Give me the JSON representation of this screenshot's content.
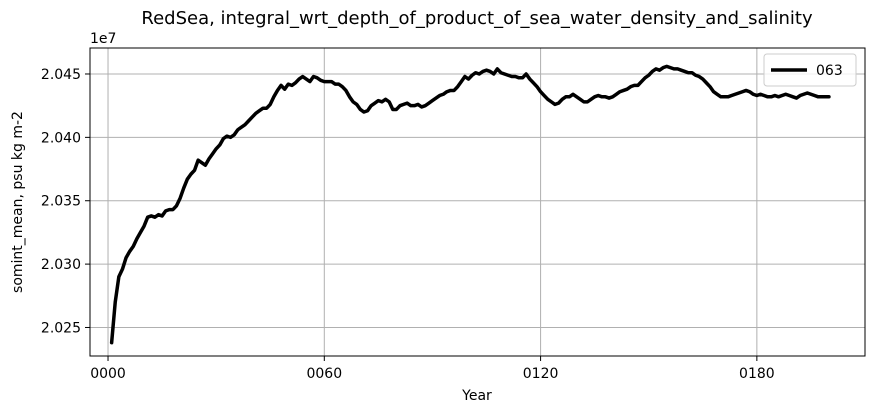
{
  "chart_data": {
    "type": "line",
    "title": "RedSea, integral_wrt_depth_of_product_of_sea_water_density_and_salinity",
    "xlabel": "Year",
    "ylabel": "somint_mean, psu kg m-2",
    "y_offset_label": "1e7",
    "xlim": [
      -5,
      210
    ],
    "ylim": [
      20.2275,
      20.4705
    ],
    "y_scale_note": "values in units of 1e6; axis multiplier 1e7",
    "x_ticks": [
      {
        "value": 0,
        "label": "0000"
      },
      {
        "value": 60,
        "label": "0060"
      },
      {
        "value": 120,
        "label": "0120"
      },
      {
        "value": 180,
        "label": "0180"
      }
    ],
    "y_ticks": [
      {
        "value": 20.25,
        "label": "2.025"
      },
      {
        "value": 20.3,
        "label": "2.030"
      },
      {
        "value": 20.35,
        "label": "2.035"
      },
      {
        "value": 20.4,
        "label": "2.040"
      },
      {
        "value": 20.45,
        "label": "2.045"
      }
    ],
    "grid": true,
    "legend_position": "top-right",
    "series": [
      {
        "name": "063",
        "color": "#000000",
        "x": [
          1,
          2,
          3,
          4,
          5,
          6,
          7,
          8,
          9,
          10,
          11,
          12,
          13,
          14,
          15,
          16,
          17,
          18,
          19,
          20,
          21,
          22,
          23,
          24,
          25,
          26,
          27,
          28,
          29,
          30,
          31,
          32,
          33,
          34,
          35,
          36,
          37,
          38,
          39,
          40,
          41,
          42,
          43,
          44,
          45,
          46,
          47,
          48,
          49,
          50,
          51,
          52,
          53,
          54,
          55,
          56,
          57,
          58,
          59,
          60,
          61,
          62,
          63,
          64,
          65,
          66,
          67,
          68,
          69,
          70,
          71,
          72,
          73,
          74,
          75,
          76,
          77,
          78,
          79,
          80,
          81,
          82,
          83,
          84,
          85,
          86,
          87,
          88,
          89,
          90,
          91,
          92,
          93,
          94,
          95,
          96,
          97,
          98,
          99,
          100,
          101,
          102,
          103,
          104,
          105,
          106,
          107,
          108,
          109,
          110,
          111,
          112,
          113,
          114,
          115,
          116,
          117,
          118,
          119,
          120,
          121,
          122,
          123,
          124,
          125,
          126,
          127,
          128,
          129,
          130,
          131,
          132,
          133,
          134,
          135,
          136,
          137,
          138,
          139,
          140,
          141,
          142,
          143,
          144,
          145,
          146,
          147,
          148,
          149,
          150,
          151,
          152,
          153,
          154,
          155,
          156,
          157,
          158,
          159,
          160,
          161,
          162,
          163,
          164,
          165,
          166,
          167,
          168,
          169,
          170,
          171,
          172,
          173,
          174,
          175,
          176,
          177,
          178,
          179,
          180,
          181,
          182,
          183,
          184,
          185,
          186,
          187,
          188,
          189,
          190,
          191,
          192,
          193,
          194,
          195,
          196,
          197,
          198,
          199,
          200
        ],
        "y": [
          20.238,
          20.27,
          20.29,
          20.296,
          20.305,
          20.31,
          20.314,
          20.32,
          20.325,
          20.33,
          20.337,
          20.338,
          20.337,
          20.339,
          20.338,
          20.342,
          20.343,
          20.343,
          20.346,
          20.352,
          20.36,
          20.367,
          20.371,
          20.374,
          20.382,
          20.38,
          20.378,
          20.383,
          20.387,
          20.391,
          20.394,
          20.399,
          20.401,
          20.4,
          20.402,
          20.406,
          20.408,
          20.41,
          20.413,
          20.416,
          20.419,
          20.421,
          20.423,
          20.423,
          20.426,
          20.432,
          20.437,
          20.441,
          20.438,
          20.442,
          20.441,
          20.443,
          20.446,
          20.448,
          20.446,
          20.444,
          20.448,
          20.447,
          20.445,
          20.444,
          20.444,
          20.444,
          20.442,
          20.442,
          20.44,
          20.437,
          20.432,
          20.428,
          20.426,
          20.422,
          20.42,
          20.421,
          20.425,
          20.427,
          20.429,
          20.428,
          20.43,
          20.428,
          20.422,
          20.422,
          20.425,
          20.426,
          20.427,
          20.425,
          20.425,
          20.426,
          20.424,
          20.425,
          20.427,
          20.429,
          20.431,
          20.433,
          20.434,
          20.436,
          20.437,
          20.437,
          20.44,
          20.444,
          20.448,
          20.446,
          20.449,
          20.451,
          20.45,
          20.452,
          20.453,
          20.452,
          20.45,
          20.454,
          20.451,
          20.45,
          20.449,
          20.448,
          20.448,
          20.447,
          20.447,
          20.45,
          20.446,
          20.443,
          20.44,
          20.436,
          20.433,
          20.43,
          20.428,
          20.426,
          20.427,
          20.43,
          20.432,
          20.432,
          20.434,
          20.432,
          20.43,
          20.428,
          20.428,
          20.43,
          20.432,
          20.433,
          20.432,
          20.432,
          20.431,
          20.432,
          20.434,
          20.436,
          20.437,
          20.438,
          20.44,
          20.441,
          20.441,
          20.444,
          20.447,
          20.449,
          20.452,
          20.454,
          20.453,
          20.455,
          20.456,
          20.455,
          20.454,
          20.454,
          20.453,
          20.452,
          20.451,
          20.451,
          20.449,
          20.448,
          20.446,
          20.443,
          20.44,
          20.436,
          20.434,
          20.432,
          20.432,
          20.432,
          20.433,
          20.434,
          20.435,
          20.436,
          20.437,
          20.436,
          20.434,
          20.433,
          20.434,
          20.433,
          20.432,
          20.432,
          20.433,
          20.432,
          20.433,
          20.434,
          20.433,
          20.432,
          20.431,
          20.433,
          20.434,
          20.435,
          20.434,
          20.433,
          20.432,
          20.432,
          20.432,
          20.432
        ]
      }
    ]
  }
}
